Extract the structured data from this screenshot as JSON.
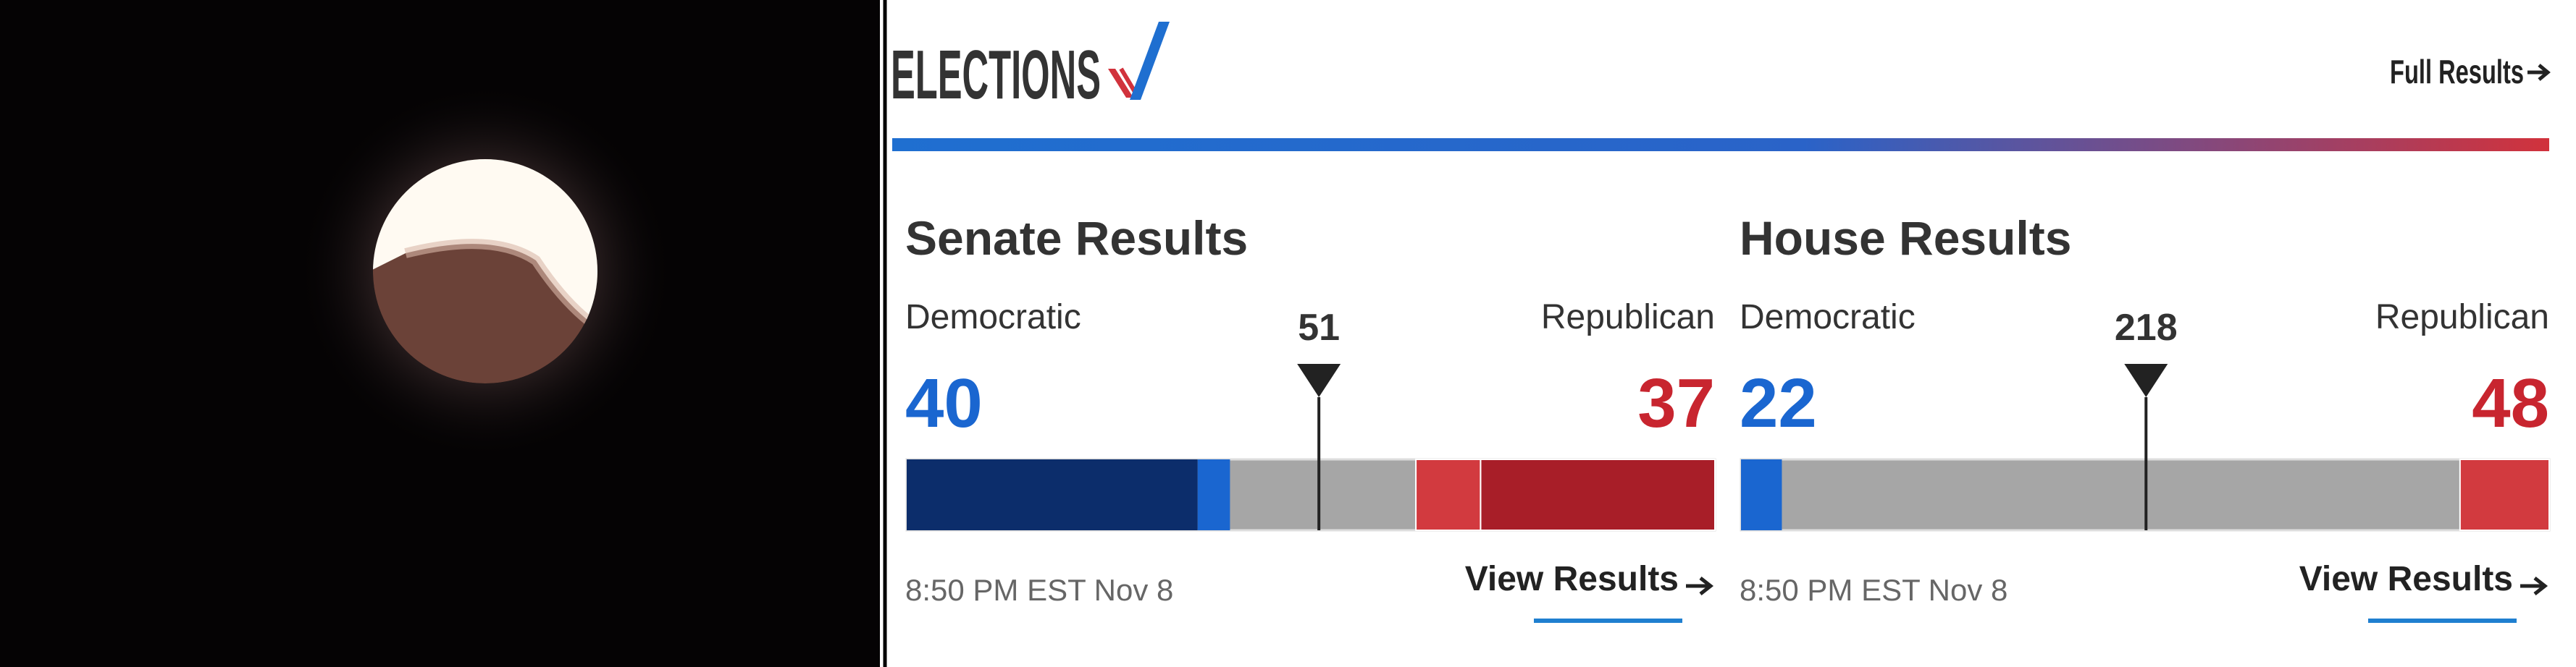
{
  "header": {
    "title": "ELECTIONS",
    "link": "Full Results"
  },
  "races": [
    {
      "title": "Senate Results",
      "left_label": "Democratic",
      "right_label": "Republican",
      "left_total": 40,
      "right_total": 37,
      "threshold": 51,
      "xlim": [
        0,
        100
      ],
      "left_segments": [
        {
          "value": 36,
          "color": "#0c2d6b"
        },
        {
          "value": 4,
          "color": "#1a66d0"
        }
      ],
      "right_segments": [
        {
          "value": 29,
          "color": "#a81e28"
        },
        {
          "value": 8,
          "color": "#d23a3f"
        }
      ],
      "timestamp": "8:50 PM EST Nov 8",
      "link": "View Results"
    },
    {
      "title": "House Results",
      "left_label": "Democratic",
      "right_label": "Republican",
      "left_total": 22,
      "right_total": 48,
      "threshold": 218,
      "xlim": [
        0,
        435
      ],
      "left_segments": [
        {
          "value": 22,
          "color": "#1a66d0"
        }
      ],
      "right_segments": [
        {
          "value": 48,
          "color": "#d23a3f"
        }
      ],
      "timestamp": "8:50 PM EST Nov 8",
      "link": "View Results"
    }
  ]
}
